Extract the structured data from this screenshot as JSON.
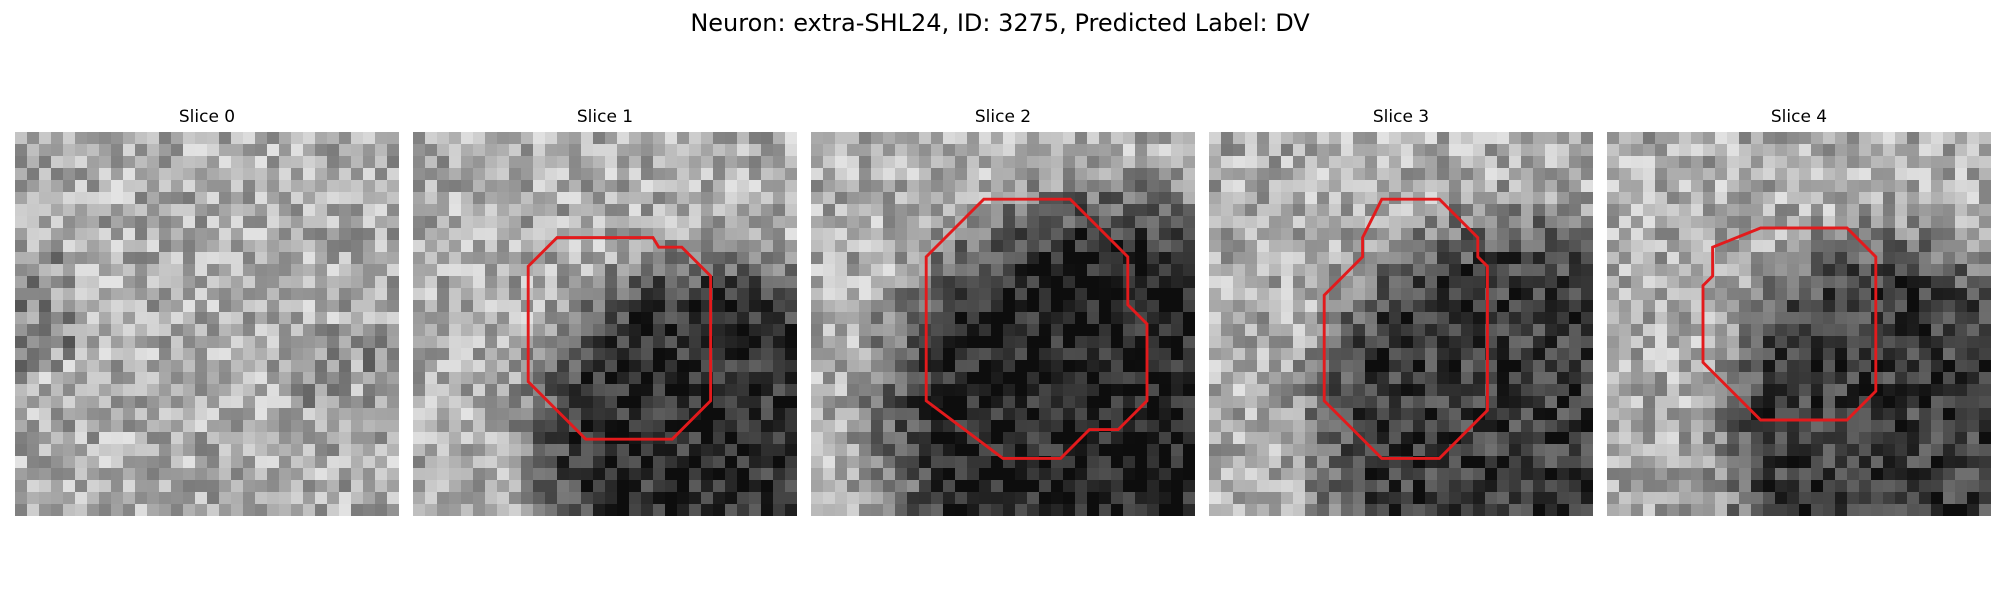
{
  "figure": {
    "title": "Neuron: extra-SHL24, ID: 3275, Predicted Label: DV"
  },
  "image_grid": {
    "pixels": 32,
    "colormap": "gray"
  },
  "contour_color": "#e31a1c",
  "panels": [
    {
      "title": "Slice 0",
      "blob": null,
      "contour": []
    },
    {
      "title": "Slice 1",
      "blob": {
        "cx": 15.5,
        "cy": 16.0,
        "rx": 8.8,
        "ry": 9.0,
        "strength": 0.5
      },
      "contour": [
        [
          7.5,
          5.5
        ],
        [
          12.5,
          5.5
        ],
        [
          12.8,
          6.0
        ],
        [
          14.0,
          6.0
        ],
        [
          15.5,
          7.5
        ],
        [
          15.5,
          14.0
        ],
        [
          13.5,
          16.0
        ],
        [
          9.0,
          16.0
        ],
        [
          6.0,
          13.0
        ],
        [
          6.0,
          7.0
        ]
      ]
    },
    {
      "title": "Slice 2",
      "blob": {
        "cx": 15.5,
        "cy": 14.5,
        "rx": 11.0,
        "ry": 10.5,
        "strength": 0.55
      },
      "contour": [
        [
          9.0,
          3.5
        ],
        [
          13.5,
          3.5
        ],
        [
          16.5,
          6.5
        ],
        [
          16.5,
          9.0
        ],
        [
          17.0,
          9.5
        ],
        [
          17.5,
          10.0
        ],
        [
          17.5,
          14.0
        ],
        [
          16.0,
          15.5
        ],
        [
          14.5,
          15.5
        ],
        [
          13.0,
          17.0
        ],
        [
          10.0,
          17.0
        ],
        [
          6.0,
          14.0
        ],
        [
          6.0,
          6.5
        ]
      ]
    },
    {
      "title": "Slice 3",
      "blob": {
        "cx": 15.5,
        "cy": 15.0,
        "rx": 9.5,
        "ry": 10.0,
        "strength": 0.45
      },
      "contour": [
        [
          9.0,
          3.5
        ],
        [
          12.0,
          3.5
        ],
        [
          14.0,
          5.5
        ],
        [
          14.0,
          6.5
        ],
        [
          14.5,
          7.0
        ],
        [
          14.5,
          14.5
        ],
        [
          12.0,
          17.0
        ],
        [
          9.0,
          17.0
        ],
        [
          6.0,
          14.0
        ],
        [
          6.0,
          8.5
        ],
        [
          8.0,
          6.5
        ],
        [
          8.0,
          5.5
        ]
      ]
    },
    {
      "title": "Slice 4",
      "blob": {
        "cx": 14.5,
        "cy": 15.5,
        "rx": 8.0,
        "ry": 9.5,
        "strength": 0.45
      },
      "contour": [
        [
          8.0,
          5.0
        ],
        [
          12.5,
          5.0
        ],
        [
          14.0,
          6.5
        ],
        [
          14.0,
          13.5
        ],
        [
          12.5,
          15.0
        ],
        [
          8.0,
          15.0
        ],
        [
          5.0,
          12.0
        ],
        [
          5.0,
          8.0
        ],
        [
          5.5,
          7.5
        ],
        [
          5.5,
          6.0
        ]
      ]
    }
  ]
}
